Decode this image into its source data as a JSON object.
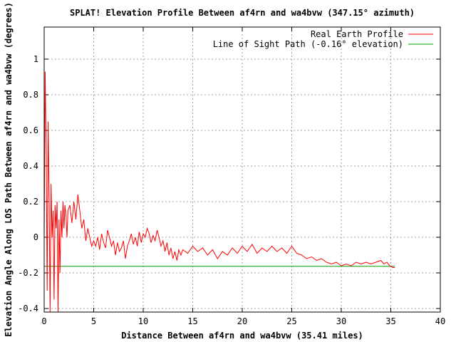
{
  "chart_data": {
    "type": "line",
    "title": "SPLAT! Elevation Profile Between af4rn and wa4bvw (347.15° azimuth)",
    "xlabel": "Distance Between af4rn and wa4bvw (35.41 miles)",
    "ylabel": "Elevation Angle Along LOS Path Between af4rn and wa4bvw (degrees)",
    "xlim": [
      0,
      40
    ],
    "ylim": [
      -0.42,
      1.18
    ],
    "x_ticks": [
      0,
      5,
      10,
      15,
      20,
      25,
      30,
      35,
      40
    ],
    "x_tick_labels": [
      "0",
      "5",
      "10",
      "15",
      "20",
      "25",
      "30",
      "35",
      "40"
    ],
    "y_ticks": [
      -0.4,
      -0.2,
      0,
      0.2,
      0.4,
      0.6,
      0.8,
      1
    ],
    "y_tick_labels": [
      "-0.4",
      "-0.2",
      "0",
      "0.2",
      "0.4",
      "0.6",
      "0.8",
      "1"
    ],
    "grid": true,
    "legend_position": "top-right",
    "series": [
      {
        "name": "Real Earth Profile",
        "color": "#ff0000",
        "x": [
          0,
          0.1,
          0.2,
          0.3,
          0.4,
          0.5,
          0.6,
          0.7,
          0.8,
          0.9,
          1.0,
          1.1,
          1.2,
          1.3,
          1.4,
          1.5,
          1.6,
          1.7,
          1.8,
          1.9,
          2.0,
          2.1,
          2.2,
          2.3,
          2.4,
          2.6,
          2.8,
          3.0,
          3.2,
          3.4,
          3.6,
          3.8,
          4.0,
          4.2,
          4.4,
          4.6,
          4.8,
          5.0,
          5.2,
          5.4,
          5.6,
          5.8,
          6.0,
          6.2,
          6.4,
          6.6,
          6.8,
          7.0,
          7.2,
          7.4,
          7.6,
          7.8,
          8.0,
          8.2,
          8.4,
          8.6,
          8.8,
          9.0,
          9.2,
          9.4,
          9.6,
          9.8,
          10.0,
          10.2,
          10.4,
          10.6,
          10.8,
          11.0,
          11.2,
          11.4,
          11.6,
          11.8,
          12.0,
          12.2,
          12.4,
          12.6,
          12.8,
          13.0,
          13.2,
          13.4,
          13.6,
          13.8,
          14.0,
          14.5,
          15.0,
          15.5,
          16.0,
          16.5,
          17.0,
          17.5,
          18.0,
          18.5,
          19.0,
          19.5,
          20.0,
          20.5,
          21.0,
          21.5,
          22.0,
          22.5,
          23.0,
          23.5,
          24.0,
          24.5,
          25.0,
          25.5,
          26.0,
          26.5,
          27.0,
          27.5,
          28.0,
          28.5,
          29.0,
          29.5,
          30.0,
          30.5,
          31.0,
          31.5,
          32.0,
          32.5,
          33.0,
          33.5,
          34.0,
          34.3,
          34.6,
          34.9,
          35.2,
          35.41
        ],
        "values": [
          0.0,
          0.93,
          0.5,
          -0.3,
          0.65,
          0.2,
          -0.42,
          0.3,
          0.0,
          0.15,
          -0.35,
          0.18,
          0.05,
          0.2,
          -0.42,
          0.1,
          -0.2,
          0.15,
          0.0,
          0.2,
          0.05,
          0.18,
          0.12,
          0.0,
          0.15,
          0.18,
          0.08,
          0.2,
          0.1,
          0.24,
          0.15,
          0.05,
          0.1,
          -0.02,
          0.05,
          0.0,
          -0.05,
          -0.02,
          -0.05,
          0.0,
          -0.07,
          0.02,
          -0.03,
          -0.06,
          0.04,
          0.0,
          -0.05,
          -0.02,
          -0.1,
          -0.03,
          -0.08,
          -0.06,
          -0.02,
          -0.12,
          -0.05,
          -0.02,
          0.02,
          -0.04,
          0.0,
          -0.05,
          0.03,
          -0.03,
          0.02,
          0.0,
          0.05,
          0.02,
          -0.03,
          0.01,
          -0.02,
          0.04,
          0.0,
          -0.05,
          -0.02,
          -0.08,
          -0.03,
          -0.1,
          -0.06,
          -0.12,
          -0.08,
          -0.13,
          -0.07,
          -0.1,
          -0.07,
          -0.09,
          -0.05,
          -0.08,
          -0.06,
          -0.1,
          -0.07,
          -0.12,
          -0.08,
          -0.1,
          -0.06,
          -0.09,
          -0.05,
          -0.08,
          -0.04,
          -0.09,
          -0.06,
          -0.08,
          -0.05,
          -0.08,
          -0.06,
          -0.09,
          -0.05,
          -0.09,
          -0.1,
          -0.12,
          -0.11,
          -0.13,
          -0.12,
          -0.14,
          -0.15,
          -0.14,
          -0.16,
          -0.15,
          -0.16,
          -0.14,
          -0.15,
          -0.14,
          -0.15,
          -0.14,
          -0.13,
          -0.15,
          -0.14,
          -0.16,
          -0.17,
          -0.17
        ]
      },
      {
        "name": "Line of Sight Path (-0.16° elevation)",
        "color": "#00a000",
        "x": [
          0,
          35.41
        ],
        "values": [
          -0.163,
          -0.163
        ]
      }
    ]
  }
}
